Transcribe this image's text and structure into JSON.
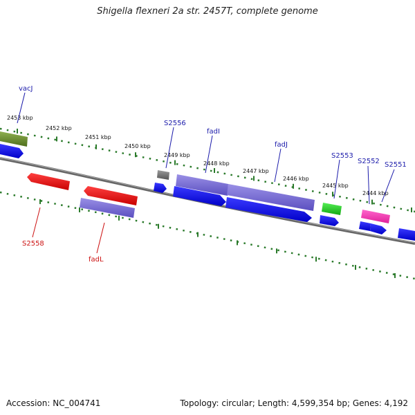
{
  "title": "Shigella flexneri 2a str. 2457T, complete genome",
  "footer": {
    "accession": "Accession: NC_004741",
    "summary": "Topology: circular; Length: 4,599,354 bp; Genes: 4,192"
  },
  "ticks": [
    "2453 kbp",
    "2452 kbp",
    "2451 kbp",
    "2450 kbp",
    "2449 kbp",
    "2448 kbp",
    "2447 kbp",
    "2446 kbp",
    "2445 kbp",
    "2444 kbp"
  ],
  "gene_labels": {
    "vacJ": "vacJ",
    "S2556": "S2556",
    "fadI": "fadI",
    "fadJ": "fadJ",
    "S2553": "S2553",
    "S2552": "S2552",
    "S2551": "S2551",
    "S2558": "S2558",
    "fadL": "fadL"
  },
  "colors": {
    "forward_label": "#1a1aaa",
    "reverse_label": "#cc1111",
    "cds": "#0000ee",
    "tick": "#2a7a2a",
    "backbone": "#777777"
  }
}
